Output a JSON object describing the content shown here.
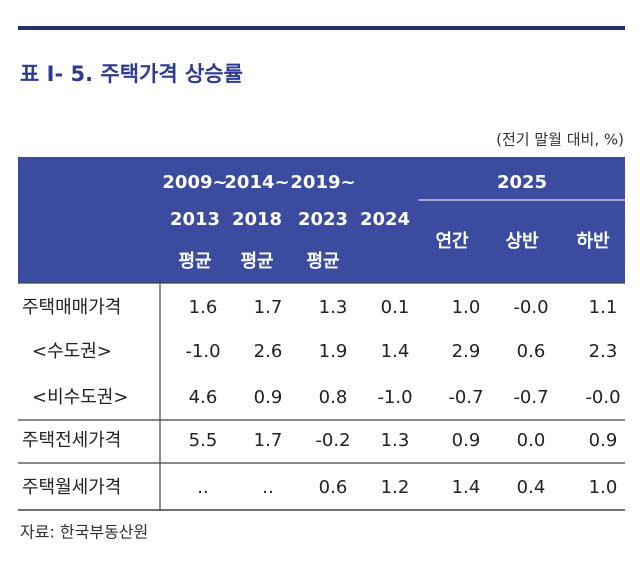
{
  "header": {
    "title": "표 Ⅰ- 5. 주택가격 상승률",
    "unit": "(전기 말월 대비, %)"
  },
  "table": {
    "group_headers": [
      "2009~",
      "2014~",
      "2019~",
      "2025"
    ],
    "year_headers": [
      "2013",
      "2018",
      "2023",
      "2024"
    ],
    "sub_headers": [
      "평균",
      "평균",
      "평균",
      "연간",
      "상반",
      "하반"
    ],
    "rows": [
      {
        "label": "주택매매가격",
        "values": [
          "1.6",
          "1.7",
          "1.3",
          "0.1",
          "1.0",
          "-0.0",
          "1.1"
        ]
      },
      {
        "label": "<수도권>",
        "values": [
          "-1.0",
          "2.6",
          "1.9",
          "1.4",
          "2.9",
          "0.6",
          "2.3"
        ]
      },
      {
        "label": "<비수도권>",
        "values": [
          "4.6",
          "0.9",
          "0.8",
          "-1.0",
          "-0.7",
          "-0.7",
          "-0.0"
        ]
      },
      {
        "label": "주택전세가격",
        "values": [
          "5.5",
          "1.7",
          "-0.2",
          "1.3",
          "0.9",
          "0.0",
          "0.9"
        ]
      },
      {
        "label": "주택월세가격",
        "values": [
          "..",
          "..",
          "0.6",
          "1.2",
          "1.4",
          "0.4",
          "1.0"
        ]
      }
    ]
  },
  "source": "자료: 한국부동산원"
}
